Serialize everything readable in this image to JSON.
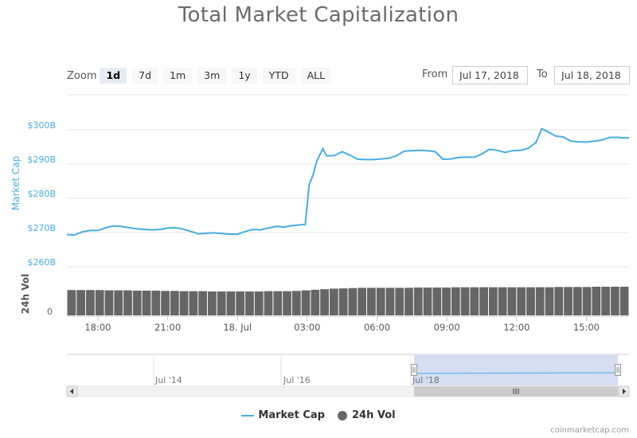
{
  "title": "Total Market Capitalization",
  "zoom": {
    "label": "Zoom",
    "buttons": [
      "1d",
      "7d",
      "1m",
      "3m",
      "1y",
      "YTD",
      "ALL"
    ],
    "active": "1d"
  },
  "range": {
    "from_label": "From",
    "from_value": "Jul 17, 2018",
    "to_label": "To",
    "to_value": "Jul 18, 2018"
  },
  "credit": "coinmarketcap.com",
  "navigator": {
    "labels": [
      "Jul '14",
      "Jul '16",
      "Jul '18"
    ],
    "selected_range_labels": [
      "Jul '18"
    ]
  },
  "colors": {
    "market_cap": "#47ace1",
    "volume": "#666666",
    "navigator_fill": "#c6d2ec"
  },
  "chart_data": {
    "type": "line",
    "title": "Total Market Capitalization",
    "x_start": "Jul 17, 2018 16:40",
    "x_end": "Jul 18, 2018 16:50",
    "x_tick_labels": [
      "18:00",
      "21:00",
      "18. Jul",
      "03:00",
      "06:00",
      "09:00",
      "12:00",
      "15:00"
    ],
    "y_axis": {
      "label": "Market Cap",
      "tick_labels": [
        "$260B",
        "$270B",
        "$280B",
        "$290B",
        "$300B"
      ],
      "ticks": [
        260,
        270,
        280,
        290,
        300
      ],
      "unit": "billion USD",
      "range": [
        260,
        303
      ]
    },
    "volume_axis": {
      "label": "24h Vol",
      "tick_labels": [
        "0"
      ]
    },
    "legend": {
      "position": "bottom-center"
    },
    "grid": true,
    "series": [
      {
        "name": "Market Cap",
        "points": [
          [
            "16:40",
            269.4
          ],
          [
            "17:00",
            269.3
          ],
          [
            "17:20",
            270.2
          ],
          [
            "17:40",
            270.6
          ],
          [
            "18:00",
            270.6
          ],
          [
            "18:20",
            271.4
          ],
          [
            "18:40",
            271.9
          ],
          [
            "19:00",
            271.8
          ],
          [
            "19:20",
            271.4
          ],
          [
            "19:40",
            271.1
          ],
          [
            "20:00",
            270.9
          ],
          [
            "20:20",
            270.8
          ],
          [
            "20:40",
            270.9
          ],
          [
            "21:00",
            271.3
          ],
          [
            "21:20",
            271.4
          ],
          [
            "21:40",
            271.0
          ],
          [
            "22:00",
            270.3
          ],
          [
            "22:20",
            269.6
          ],
          [
            "22:40",
            269.8
          ],
          [
            "23:00",
            269.9
          ],
          [
            "23:20",
            269.7
          ],
          [
            "23:40",
            269.5
          ],
          [
            "00:00",
            269.5
          ],
          [
            "00:20",
            270.3
          ],
          [
            "00:40",
            270.9
          ],
          [
            "01:00",
            270.8
          ],
          [
            "01:20",
            271.3
          ],
          [
            "01:40",
            271.8
          ],
          [
            "02:00",
            271.6
          ],
          [
            "02:20",
            272.0
          ],
          [
            "02:40",
            272.2
          ],
          [
            "02:55",
            272.4
          ],
          [
            "03:05",
            284.0
          ],
          [
            "03:15",
            286.8
          ],
          [
            "03:25",
            291.0
          ],
          [
            "03:40",
            294.5
          ],
          [
            "03:50",
            292.4
          ],
          [
            "04:10",
            292.5
          ],
          [
            "04:30",
            293.6
          ],
          [
            "04:50",
            292.6
          ],
          [
            "05:10",
            291.4
          ],
          [
            "05:30",
            291.3
          ],
          [
            "05:50",
            291.3
          ],
          [
            "06:10",
            291.5
          ],
          [
            "06:30",
            291.7
          ],
          [
            "06:50",
            292.4
          ],
          [
            "07:10",
            293.8
          ],
          [
            "07:30",
            293.9
          ],
          [
            "07:50",
            294.0
          ],
          [
            "08:10",
            293.9
          ],
          [
            "08:30",
            293.6
          ],
          [
            "08:50",
            291.4
          ],
          [
            "09:10",
            291.5
          ],
          [
            "09:30",
            291.9
          ],
          [
            "09:50",
            292.0
          ],
          [
            "10:10",
            292.0
          ],
          [
            "10:30",
            292.9
          ],
          [
            "10:50",
            294.3
          ],
          [
            "11:10",
            294.0
          ],
          [
            "11:30",
            293.4
          ],
          [
            "11:50",
            293.9
          ],
          [
            "12:10",
            294.0
          ],
          [
            "12:30",
            294.6
          ],
          [
            "12:50",
            296.3
          ],
          [
            "13:05",
            300.3
          ],
          [
            "13:20",
            299.5
          ],
          [
            "13:40",
            298.2
          ],
          [
            "14:00",
            297.9
          ],
          [
            "14:20",
            296.7
          ],
          [
            "14:40",
            296.5
          ],
          [
            "15:00",
            296.4
          ],
          [
            "15:20",
            296.7
          ],
          [
            "15:40",
            297.0
          ],
          [
            "16:00",
            297.8
          ],
          [
            "16:20",
            297.8
          ],
          [
            "16:40",
            297.6
          ],
          [
            "16:50",
            297.7
          ]
        ]
      },
      {
        "name": "24h Vol",
        "relative_heights": [
          0.9,
          0.9,
          0.9,
          0.9,
          0.89,
          0.89,
          0.89,
          0.88,
          0.88,
          0.88,
          0.87,
          0.87,
          0.86,
          0.86,
          0.86,
          0.85,
          0.85,
          0.85,
          0.85,
          0.85,
          0.85,
          0.86,
          0.86,
          0.86,
          0.87,
          0.89,
          0.91,
          0.93,
          0.95,
          0.96,
          0.97,
          0.98,
          0.98,
          0.98,
          0.98,
          0.98,
          0.98,
          0.99,
          0.99,
          0.99,
          0.99,
          1.0,
          1.0,
          1.0,
          1.0,
          1.0,
          1.0,
          1.0,
          1.0,
          1.0,
          1.0,
          1.0,
          1.01,
          1.01,
          1.01,
          1.01,
          1.02,
          1.02,
          1.02,
          1.02
        ]
      }
    ]
  }
}
